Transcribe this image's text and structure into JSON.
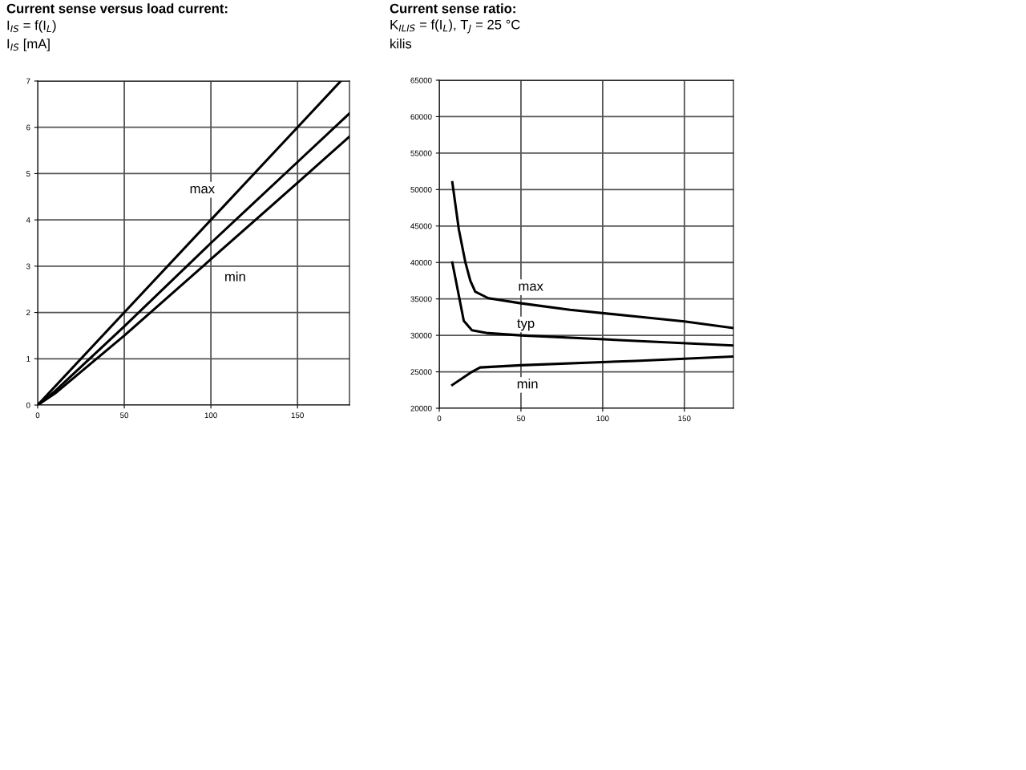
{
  "chart_data": [
    {
      "type": "line",
      "title": "Current sense versus load current:",
      "subtitle": "I$_{IS}$ = f(I$_{L}$)",
      "ylabel": "I$_{IS}$ [mA]",
      "xlim": [
        0,
        180
      ],
      "xticks": [
        0,
        50,
        100,
        150
      ],
      "ylim": [
        0,
        7
      ],
      "yticks": [
        0,
        1,
        2,
        3,
        4,
        5,
        6,
        7
      ],
      "grid": true,
      "marker": "none",
      "line_style": "solid",
      "series": [
        {
          "color": "#000000",
          "x": [
            0,
            50,
            100,
            150,
            175
          ],
          "values": [
            0,
            2,
            4,
            6,
            7
          ]
        },
        {
          "color": "#000000",
          "x": [
            0,
            10,
            50,
            100,
            150,
            180
          ],
          "values": [
            0,
            0.3,
            1.7,
            3.5,
            5.25,
            6.3
          ]
        },
        {
          "color": "#000000",
          "x": [
            0,
            10,
            50,
            100,
            150,
            180
          ],
          "values": [
            0,
            0.25,
            1.5,
            3.15,
            4.8,
            5.8
          ]
        }
      ],
      "annotations": [
        {
          "text": "max",
          "x": 95,
          "y": 4.65
        },
        {
          "text": "min",
          "x": 114,
          "y": 2.75
        }
      ]
    },
    {
      "type": "line",
      "title": "Current sense ratio:",
      "subtitle": "K$_{ILIS}$ = f(I$_{L}$), T$_{J}$ = 25 °C",
      "ylabel": "kilis",
      "xlim": [
        0,
        180
      ],
      "xticks": [
        0,
        50,
        100,
        150
      ],
      "ylim": [
        20000,
        65000
      ],
      "yticks": [
        20000,
        25000,
        30000,
        35000,
        40000,
        45000,
        50000,
        55000,
        60000,
        65000
      ],
      "grid": true,
      "marker": "none",
      "line_style": "solid",
      "series": [
        {
          "color": "#000000",
          "x": [
            8,
            12,
            16,
            19,
            22,
            30,
            50,
            80,
            120,
            150,
            180
          ],
          "values": [
            51000,
            44500,
            40000,
            37500,
            36000,
            35100,
            34400,
            33500,
            32600,
            31900,
            31000
          ]
        },
        {
          "color": "#000000",
          "x": [
            8,
            11.5,
            15,
            20,
            30,
            50,
            120,
            180
          ],
          "values": [
            40000,
            36000,
            32000,
            30700,
            30300,
            30000,
            29250,
            28600
          ]
        },
        {
          "color": "#000000",
          "x": [
            8,
            20,
            25,
            50,
            120,
            180
          ],
          "values": [
            23200,
            25000,
            25600,
            25900,
            26500,
            27100
          ]
        }
      ],
      "annotations": [
        {
          "text": "max",
          "x": 56,
          "y": 36600
        },
        {
          "text": "typ",
          "x": 53,
          "y": 31500
        },
        {
          "text": "min",
          "x": 54,
          "y": 23200
        }
      ]
    }
  ]
}
